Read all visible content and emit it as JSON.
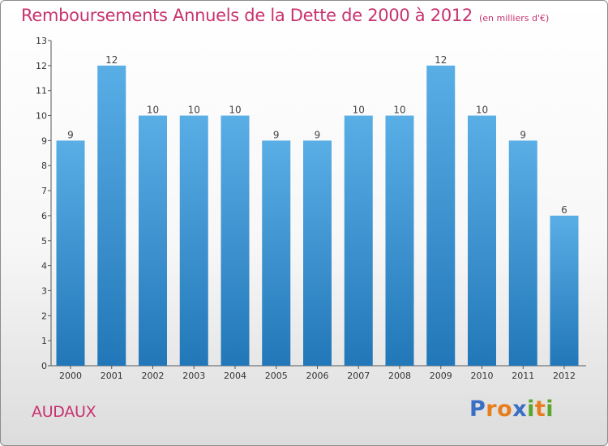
{
  "header": {
    "title": "Remboursements Annuels de la Dette de 2000 à 2012",
    "unit": "(en milliers d'€)"
  },
  "footer": {
    "commune": "AUDAUX",
    "logo_text": "Proxiti"
  },
  "colors": {
    "accent": "#c8326e",
    "bar_top": "#5aaee6",
    "bar_bottom": "#2277b8",
    "logo_letters": [
      "#3a6fc4",
      "#e87d1e",
      "#e87d1e",
      "#3a6fc4",
      "#5aa52b",
      "#e87d1e",
      "#5aa52b"
    ]
  },
  "chart_data": {
    "type": "bar",
    "title": "Remboursements Annuels de la Dette de 2000 à 2012",
    "xlabel": "",
    "ylabel": "",
    "categories": [
      "2000",
      "2001",
      "2002",
      "2003",
      "2004",
      "2005",
      "2006",
      "2007",
      "2008",
      "2009",
      "2010",
      "2011",
      "2012"
    ],
    "values": [
      9,
      12,
      10,
      10,
      10,
      9,
      9,
      10,
      10,
      12,
      10,
      9,
      6
    ],
    "ylim": [
      0,
      13
    ],
    "yticks": [
      0,
      1,
      2,
      3,
      4,
      5,
      6,
      7,
      8,
      9,
      10,
      11,
      12,
      13
    ],
    "grid": false,
    "legend": "none"
  }
}
